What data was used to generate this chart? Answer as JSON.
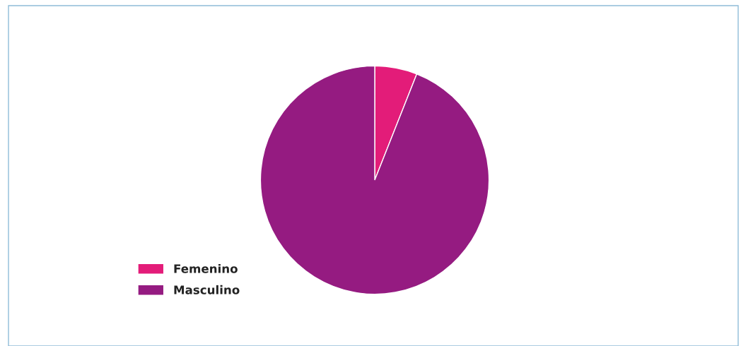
{
  "chart_data": {
    "type": "pie",
    "categories": [
      "Femenino",
      "Masculino"
    ],
    "values": [
      6,
      94
    ],
    "colors": [
      "#e31c79",
      "#951b81"
    ],
    "legend": "bottom left"
  }
}
